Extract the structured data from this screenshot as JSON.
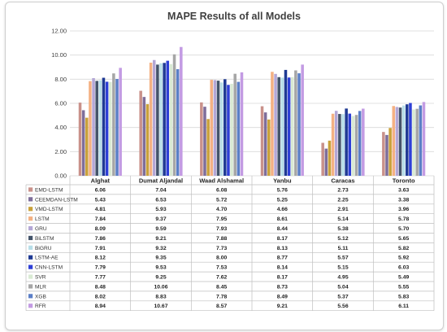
{
  "chart_data": {
    "type": "bar",
    "title": "MAPE Results of all Models",
    "categories": [
      "Alghat",
      "Dumat Aljandal",
      "Waad Alshamal",
      "Yanbu",
      "Caracas",
      "Toronto"
    ],
    "ylim": [
      0,
      12
    ],
    "yticks": [
      "0.00",
      "2.00",
      "4.00",
      "6.00",
      "8.00",
      "10.00",
      "12.00"
    ],
    "grid": true,
    "legend": "data-table-below",
    "series": [
      {
        "name": "EMD-LSTM",
        "color": "#c9918a",
        "values": [
          6.06,
          7.04,
          6.08,
          5.76,
          2.73,
          3.63
        ],
        "labels": [
          "6.06",
          "7.04",
          "6.08",
          "5.76",
          "2.73",
          "3.63"
        ]
      },
      {
        "name": "CEEMDAN-LSTM",
        "color": "#7e6e9a",
        "values": [
          5.43,
          6.53,
          5.72,
          5.25,
          2.25,
          3.38
        ],
        "labels": [
          "5.43",
          "6.53",
          "5.72",
          "5.25",
          "2.25",
          "3.38"
        ]
      },
      {
        "name": "VMD-LSTM",
        "color": "#c9a13a",
        "values": [
          4.81,
          5.93,
          4.7,
          4.66,
          2.91,
          3.96
        ],
        "labels": [
          "4.81",
          "5.93",
          "4.70",
          "4.66",
          "2.91",
          "3.96"
        ]
      },
      {
        "name": "LSTM",
        "color": "#f4b183",
        "values": [
          7.84,
          9.37,
          7.95,
          8.61,
          5.14,
          5.78
        ],
        "labels": [
          "7.84",
          "9.37",
          "7.95",
          "8.61",
          "5.14",
          "5.78"
        ]
      },
      {
        "name": "GRU",
        "color": "#b4a7d6",
        "values": [
          8.09,
          9.59,
          7.93,
          8.44,
          5.38,
          5.7
        ],
        "labels": [
          "8.09",
          "9.59",
          "7.93",
          "8.44",
          "5.38",
          "5.70"
        ]
      },
      {
        "name": "BiLSTM",
        "color": "#44546a",
        "values": [
          7.86,
          9.21,
          7.88,
          8.17,
          5.12,
          5.65
        ],
        "labels": [
          "7.86",
          "9.21",
          "7.88",
          "8.17",
          "5.12",
          "5.65"
        ]
      },
      {
        "name": "BiGRU",
        "color": "#b7dee8",
        "values": [
          7.91,
          9.32,
          7.73,
          8.13,
          5.11,
          5.82
        ],
        "labels": [
          "7.91",
          "9.32",
          "7.73",
          "8.13",
          "5.11",
          "5.82"
        ]
      },
      {
        "name": "LSTM-AE",
        "color": "#1f3a93",
        "values": [
          8.12,
          9.35,
          8.0,
          8.77,
          5.57,
          5.92
        ],
        "labels": [
          "8.12",
          "9.35",
          "8.00",
          "8.77",
          "5.57",
          "5.92"
        ]
      },
      {
        "name": "CNN-LSTM",
        "color": "#2e3fd6",
        "values": [
          7.79,
          9.53,
          7.53,
          8.14,
          5.15,
          6.03
        ],
        "labels": [
          "7.79",
          "9.53",
          "7.53",
          "8.14",
          "5.15",
          "6.03"
        ]
      },
      {
        "name": "SVR",
        "color": "#d9ead3",
        "values": [
          7.77,
          9.25,
          7.62,
          8.17,
          4.95,
          5.49
        ],
        "labels": [
          "7.77",
          "9.25",
          "7.62",
          "8.17",
          "4.95",
          "5.49"
        ]
      },
      {
        "name": "MLR",
        "color": "#a6a6a6",
        "values": [
          8.48,
          10.06,
          8.45,
          8.73,
          5.04,
          5.55
        ],
        "labels": [
          "8.48",
          "10.06",
          "8.45",
          "8.73",
          "5.04",
          "5.55"
        ]
      },
      {
        "name": "XGB",
        "color": "#5b7fc7",
        "values": [
          8.02,
          8.83,
          7.78,
          8.49,
          5.37,
          5.83
        ],
        "labels": [
          "8.02",
          "8.83",
          "7.78",
          "8.49",
          "5.37",
          "5.83"
        ]
      },
      {
        "name": "RFR",
        "color": "#c39be3",
        "values": [
          8.94,
          10.67,
          8.57,
          9.21,
          5.56,
          6.11
        ],
        "labels": [
          "8.94",
          "10.67",
          "8.57",
          "9.21",
          "5.56",
          "6.11"
        ]
      }
    ]
  }
}
